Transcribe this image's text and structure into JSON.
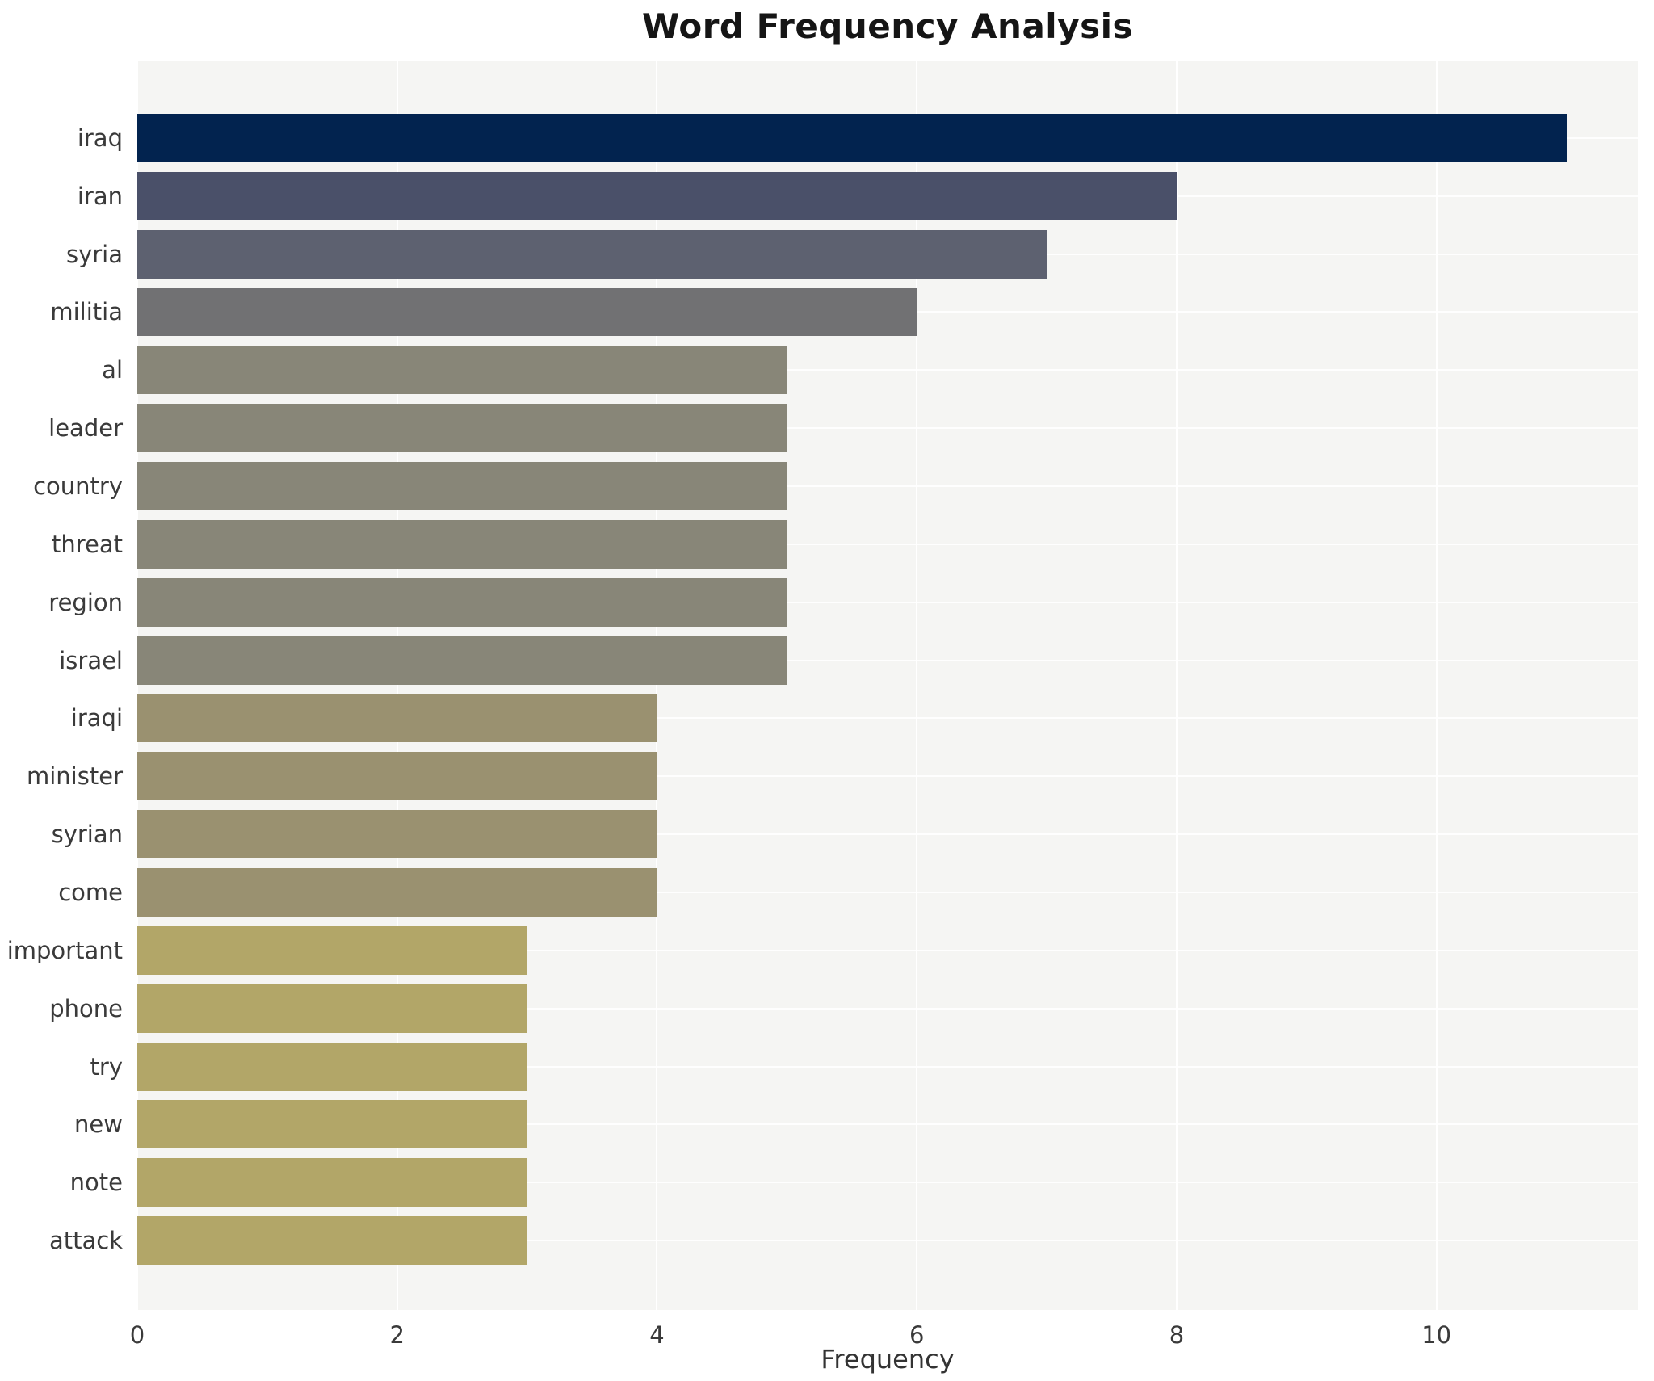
{
  "title": "Word Frequency Analysis",
  "chart_data": {
    "type": "bar",
    "orientation": "horizontal",
    "title": "Word Frequency Analysis",
    "xlabel": "Frequency",
    "ylabel": "",
    "categories": [
      "iraq",
      "iran",
      "syria",
      "militia",
      "al",
      "leader",
      "country",
      "threat",
      "region",
      "israel",
      "iraqi",
      "minister",
      "syrian",
      "come",
      "important",
      "phone",
      "try",
      "new",
      "note",
      "attack"
    ],
    "values": [
      11,
      8,
      7,
      6,
      5,
      5,
      5,
      5,
      5,
      5,
      4,
      4,
      4,
      4,
      3,
      3,
      3,
      3,
      3,
      3
    ],
    "xlim": [
      0,
      11.55
    ],
    "xticks": [
      0,
      2,
      4,
      6,
      8,
      10
    ],
    "grid": true,
    "legend": "none",
    "plot_background": "#f5f5f3",
    "gridline_color": "#ffffff",
    "value_colors": {
      "11": "#02234f",
      "8": "#4a5069",
      "7": "#5d6170",
      "6": "#717173",
      "5": "#888678",
      "4": "#9a9170",
      "3": "#b2a668"
    }
  }
}
